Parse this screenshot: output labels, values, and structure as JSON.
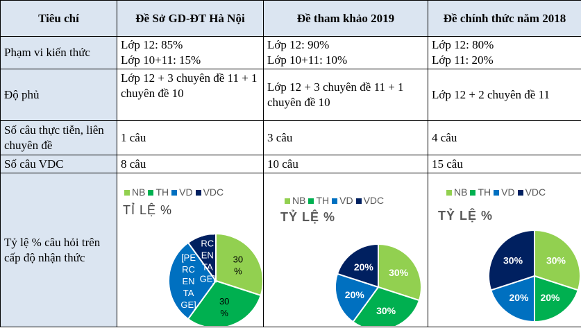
{
  "colors": {
    "header_bg": "#dbe5f1",
    "nb": "#92d050",
    "th": "#00b050",
    "vd": "#0070c0",
    "vdc": "#002060"
  },
  "table": {
    "headers": [
      "Tiêu chí",
      "Đề Sở GD-ĐT Hà Nội",
      "Đề tham khảo 2019",
      "Đề chính thức năm 2018"
    ],
    "rows": [
      {
        "criterion": "Phạm vi kiến thức",
        "cells": [
          [
            "Lớp 12: 85%",
            "Lớp 10+11: 15%"
          ],
          [
            "Lớp 12: 90%",
            "Lớp 10+11: 10%"
          ],
          [
            "Lớp 12: 80%",
            "Lớp 11: 20%"
          ]
        ]
      },
      {
        "criterion": "Độ phủ",
        "cells": [
          "Lớp 12 + 3 chuyên đề 11 + 1 chuyên đề 10",
          "Lớp 12 + 3 chuyên đề 11 + 1 chuyên đề 10",
          "Lớp 12 + 2 chuyên đề 11"
        ]
      },
      {
        "criterion": "Số câu thực tiễn, liên chuyên đề",
        "cells": [
          "1 câu",
          "3 câu",
          "4 câu"
        ]
      },
      {
        "criterion": "Số câu VDC",
        "cells": [
          "8 câu",
          "10 câu",
          "15 câu"
        ]
      },
      {
        "criterion": "Tỷ lệ % câu hỏi trên cấp độ nhận thức"
      }
    ]
  },
  "chart_data": [
    {
      "type": "pie",
      "title": "TỈ LỆ %",
      "legend": [
        "NB",
        "TH",
        "VD",
        "VDC"
      ],
      "values": [
        30,
        30,
        30,
        10
      ],
      "labels": [
        "30 %",
        "30 %",
        "[PE RC EN TA GE]",
        "[PE RC EN TA GE]"
      ]
    },
    {
      "type": "pie",
      "title": "TỶ LỆ %",
      "legend": [
        "NB",
        "TH",
        "VD",
        "VDC"
      ],
      "values": [
        30,
        30,
        20,
        20
      ],
      "labels": [
        "30%",
        "30%",
        "20%",
        "20%"
      ]
    },
    {
      "type": "pie",
      "title": "TỶ LỆ %",
      "legend": [
        "NB",
        "TH",
        "VD",
        "VDC"
      ],
      "values": [
        30,
        20,
        20,
        30
      ],
      "labels": [
        "30%",
        "20%",
        "20%",
        "30%"
      ]
    }
  ]
}
